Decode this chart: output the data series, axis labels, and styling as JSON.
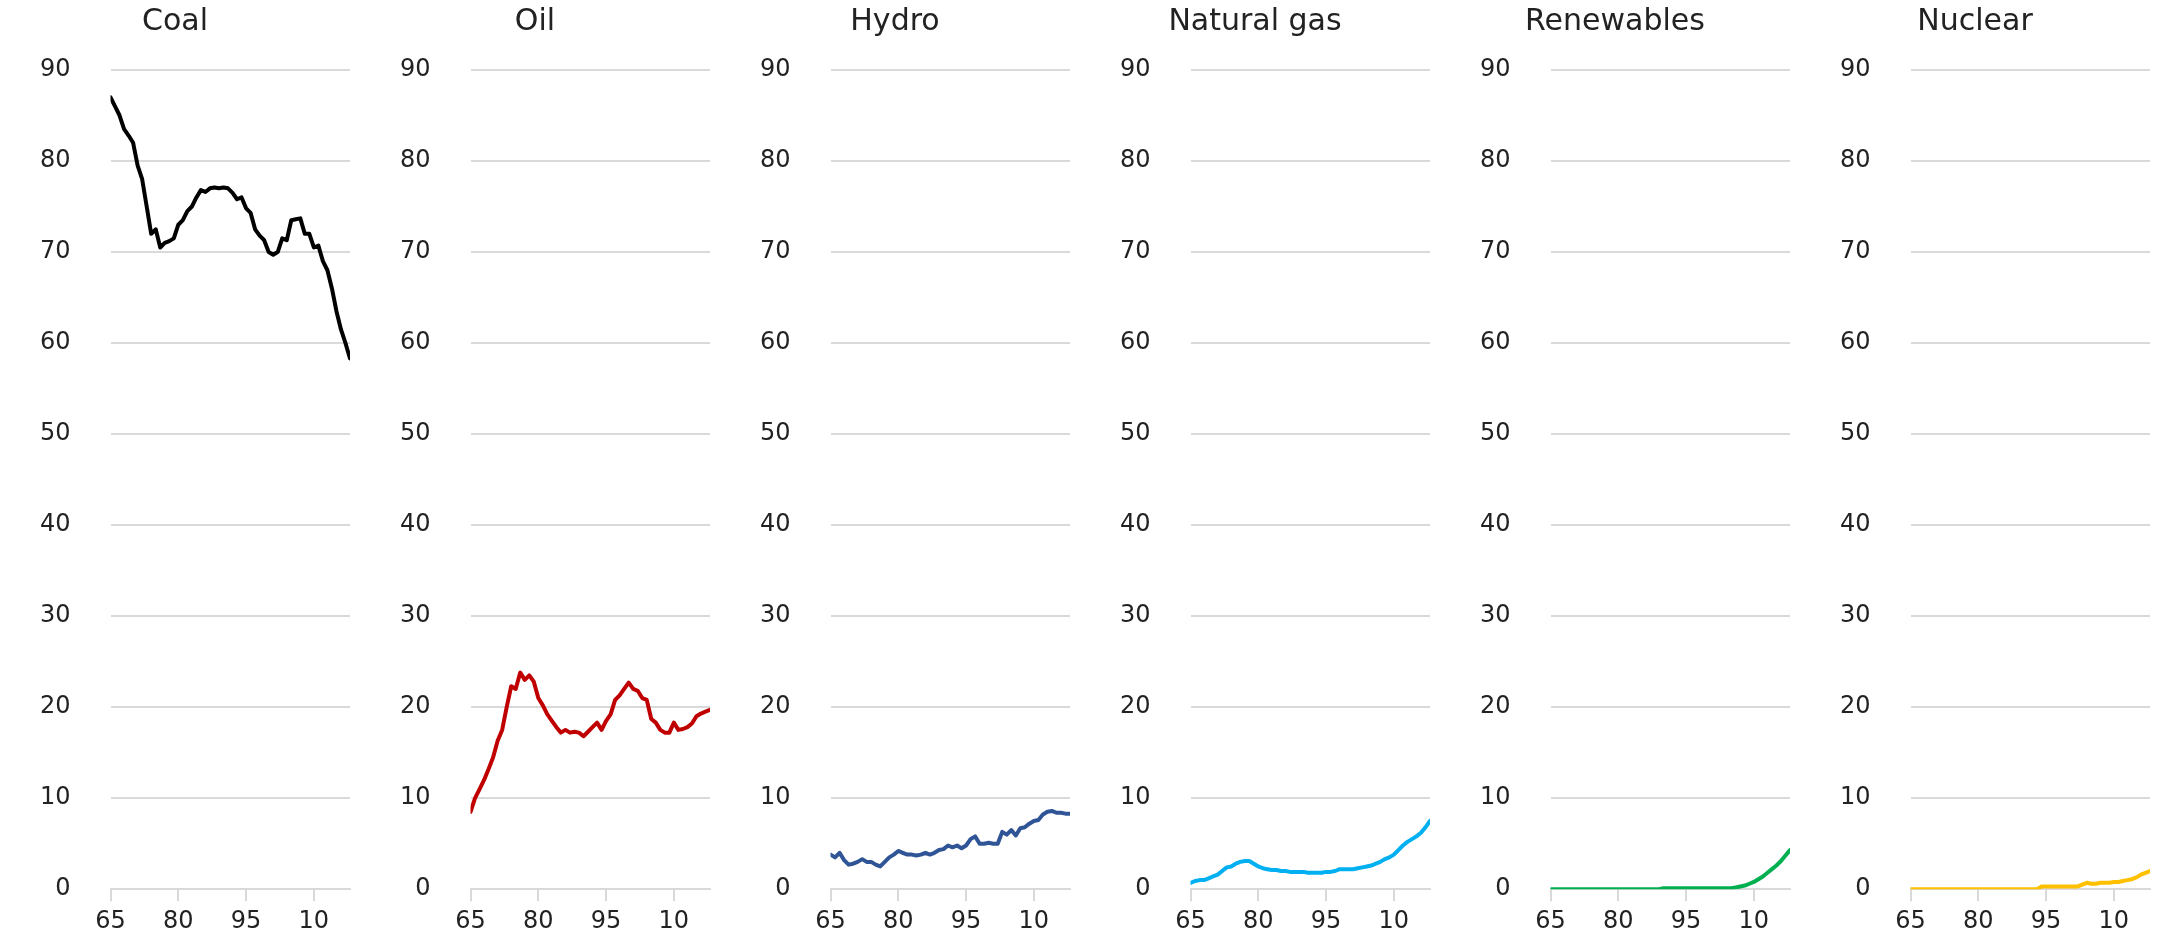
{
  "chart_data": [
    {
      "type": "line",
      "title": "Coal",
      "color": "#000000",
      "xlim": [
        1965,
        2018
      ],
      "xticks": [
        {
          "value": 1965,
          "label": "65"
        },
        {
          "value": 1980,
          "label": "80"
        },
        {
          "value": 1995,
          "label": "95"
        },
        {
          "value": 2010,
          "label": "10"
        }
      ],
      "ylim": [
        0,
        90
      ],
      "yticks": [
        0,
        10,
        20,
        30,
        40,
        50,
        60,
        70,
        80,
        90
      ],
      "grid": "y",
      "x": [
        1965,
        1966,
        1967,
        1968,
        1969,
        1970,
        1971,
        1972,
        1973,
        1974,
        1975,
        1976,
        1977,
        1978,
        1979,
        1980,
        1981,
        1982,
        1983,
        1984,
        1985,
        1986,
        1987,
        1988,
        1989,
        1990,
        1991,
        1992,
        1993,
        1994,
        1995,
        1996,
        1997,
        1998,
        1999,
        2000,
        2001,
        2002,
        2003,
        2004,
        2005,
        2006,
        2007,
        2008,
        2009,
        2010,
        2011,
        2012,
        2013,
        2014,
        2015,
        2016,
        2017,
        2018
      ],
      "values": [
        87,
        86,
        85,
        83.5,
        82.8,
        82,
        79.5,
        78,
        75,
        72,
        72.5,
        70.5,
        71,
        71.2,
        71.5,
        73,
        73.5,
        74.5,
        75,
        76,
        76.8,
        76.6,
        77,
        77.1,
        77,
        77.1,
        77,
        76.5,
        75.8,
        76,
        74.8,
        74.3,
        72.5,
        71.8,
        71.3,
        70,
        69.7,
        70,
        71.5,
        71.3,
        73.5,
        73.6,
        73.7,
        72,
        72,
        70.5,
        70.7,
        69,
        68,
        66,
        63.5,
        61.5,
        60,
        58.3
      ]
    },
    {
      "type": "line",
      "title": "Oil",
      "color": "#c00000",
      "xlim": [
        1965,
        2018
      ],
      "xticks": [
        {
          "value": 1965,
          "label": "65"
        },
        {
          "value": 1980,
          "label": "80"
        },
        {
          "value": 1995,
          "label": "95"
        },
        {
          "value": 2010,
          "label": "10"
        }
      ],
      "ylim": [
        0,
        90
      ],
      "yticks": [
        0,
        10,
        20,
        30,
        40,
        50,
        60,
        70,
        80,
        90
      ],
      "grid": "y",
      "x": [
        1965,
        1966,
        1967,
        1968,
        1969,
        1970,
        1971,
        1972,
        1973,
        1974,
        1975,
        1976,
        1977,
        1978,
        1979,
        1980,
        1981,
        1982,
        1983,
        1984,
        1985,
        1986,
        1987,
        1988,
        1989,
        1990,
        1991,
        1992,
        1993,
        1994,
        1995,
        1996,
        1997,
        1998,
        1999,
        2000,
        2001,
        2002,
        2003,
        2004,
        2005,
        2006,
        2007,
        2008,
        2009,
        2010,
        2011,
        2012,
        2013,
        2014,
        2015,
        2016,
        2017,
        2018
      ],
      "values": [
        8.5,
        10,
        11,
        12,
        13.2,
        14.5,
        16.3,
        17.5,
        20,
        22.3,
        22,
        23.8,
        23,
        23.5,
        22.8,
        21,
        20.2,
        19.2,
        18.5,
        17.8,
        17.2,
        17.5,
        17.2,
        17.3,
        17.2,
        16.8,
        17.3,
        17.8,
        18.3,
        17.5,
        18.5,
        19.2,
        20.8,
        21.3,
        22,
        22.7,
        22,
        21.8,
        21,
        20.8,
        18.7,
        18.3,
        17.5,
        17.2,
        17.2,
        18.3,
        17.5,
        17.6,
        17.8,
        18.2,
        19,
        19.3,
        19.5,
        19.7
      ]
    },
    {
      "type": "line",
      "title": "Hydro",
      "color": "#2f5597",
      "xlim": [
        1965,
        2018
      ],
      "xticks": [
        {
          "value": 1965,
          "label": "65"
        },
        {
          "value": 1980,
          "label": "80"
        },
        {
          "value": 1995,
          "label": "95"
        },
        {
          "value": 2010,
          "label": "10"
        }
      ],
      "ylim": [
        0,
        90
      ],
      "yticks": [
        0,
        10,
        20,
        30,
        40,
        50,
        60,
        70,
        80,
        90
      ],
      "grid": "y",
      "x": [
        1965,
        1966,
        1967,
        1968,
        1969,
        1970,
        1971,
        1972,
        1973,
        1974,
        1975,
        1976,
        1977,
        1978,
        1979,
        1980,
        1981,
        1982,
        1983,
        1984,
        1985,
        1986,
        1987,
        1988,
        1989,
        1990,
        1991,
        1992,
        1993,
        1994,
        1995,
        1996,
        1997,
        1998,
        1999,
        2000,
        2001,
        2002,
        2003,
        2004,
        2005,
        2006,
        2007,
        2008,
        2009,
        2010,
        2011,
        2012,
        2013,
        2014,
        2015,
        2016,
        2017,
        2018
      ],
      "values": [
        3.8,
        3.5,
        4,
        3.2,
        2.7,
        2.8,
        3,
        3.3,
        3,
        3,
        2.7,
        2.5,
        3,
        3.5,
        3.8,
        4.2,
        4,
        3.8,
        3.8,
        3.7,
        3.8,
        4,
        3.8,
        4,
        4.3,
        4.4,
        4.8,
        4.6,
        4.8,
        4.5,
        4.8,
        5.5,
        5.8,
        5,
        5,
        5.1,
        5,
        5,
        6.3,
        6,
        6.5,
        5.9,
        6.7,
        6.8,
        7.2,
        7.5,
        7.6,
        8.2,
        8.5,
        8.6,
        8.4,
        8.4,
        8.3,
        8.3
      ]
    },
    {
      "type": "line",
      "title": "Natural gas",
      "color": "#00b0f0",
      "xlim": [
        1965,
        2018
      ],
      "xticks": [
        {
          "value": 1965,
          "label": "65"
        },
        {
          "value": 1980,
          "label": "80"
        },
        {
          "value": 1995,
          "label": "95"
        },
        {
          "value": 2010,
          "label": "10"
        }
      ],
      "ylim": [
        0,
        90
      ],
      "yticks": [
        0,
        10,
        20,
        30,
        40,
        50,
        60,
        70,
        80,
        90
      ],
      "grid": "y",
      "x": [
        1965,
        1966,
        1967,
        1968,
        1969,
        1970,
        1971,
        1972,
        1973,
        1974,
        1975,
        1976,
        1977,
        1978,
        1979,
        1980,
        1981,
        1982,
        1983,
        1984,
        1985,
        1986,
        1987,
        1988,
        1989,
        1990,
        1991,
        1992,
        1993,
        1994,
        1995,
        1996,
        1997,
        1998,
        1999,
        2000,
        2001,
        2002,
        2003,
        2004,
        2005,
        2006,
        2007,
        2008,
        2009,
        2010,
        2011,
        2012,
        2013,
        2014,
        2015,
        2016,
        2017,
        2018
      ],
      "values": [
        0.7,
        0.9,
        1,
        1,
        1.2,
        1.4,
        1.6,
        2,
        2.4,
        2.5,
        2.8,
        3,
        3.1,
        3.1,
        2.8,
        2.5,
        2.3,
        2.2,
        2.1,
        2.1,
        2,
        2,
        1.9,
        1.9,
        1.9,
        1.9,
        1.8,
        1.8,
        1.8,
        1.8,
        1.9,
        1.9,
        2,
        2.2,
        2.2,
        2.2,
        2.2,
        2.3,
        2.4,
        2.5,
        2.6,
        2.8,
        3,
        3.3,
        3.5,
        3.8,
        4.3,
        4.8,
        5.2,
        5.5,
        5.8,
        6.2,
        6.8,
        7.5
      ]
    },
    {
      "type": "line",
      "title": "Renewables",
      "color": "#00b050",
      "xlim": [
        1965,
        2018
      ],
      "xticks": [
        {
          "value": 1965,
          "label": "65"
        },
        {
          "value": 1980,
          "label": "80"
        },
        {
          "value": 1995,
          "label": "95"
        },
        {
          "value": 2010,
          "label": "10"
        }
      ],
      "ylim": [
        0,
        90
      ],
      "yticks": [
        0,
        10,
        20,
        30,
        40,
        50,
        60,
        70,
        80,
        90
      ],
      "grid": "y",
      "x": [
        1965,
        1966,
        1967,
        1968,
        1969,
        1970,
        1971,
        1972,
        1973,
        1974,
        1975,
        1976,
        1977,
        1978,
        1979,
        1980,
        1981,
        1982,
        1983,
        1984,
        1985,
        1986,
        1987,
        1988,
        1989,
        1990,
        1991,
        1992,
        1993,
        1994,
        1995,
        1996,
        1997,
        1998,
        1999,
        2000,
        2001,
        2002,
        2003,
        2004,
        2005,
        2006,
        2007,
        2008,
        2009,
        2010,
        2011,
        2012,
        2013,
        2014,
        2015,
        2016,
        2017,
        2018
      ],
      "values": [
        0,
        0,
        0,
        0,
        0,
        0,
        0,
        0,
        0,
        0,
        0,
        0,
        0,
        0,
        0,
        0,
        0,
        0,
        0,
        0,
        0,
        0,
        0,
        0,
        0,
        0.1,
        0.1,
        0.1,
        0.1,
        0.1,
        0.1,
        0.1,
        0.1,
        0.1,
        0.1,
        0.1,
        0.1,
        0.1,
        0.1,
        0.1,
        0.1,
        0.2,
        0.3,
        0.4,
        0.6,
        0.8,
        1.1,
        1.4,
        1.8,
        2.2,
        2.6,
        3.1,
        3.7,
        4.3
      ]
    },
    {
      "type": "line",
      "title": "Nuclear",
      "color": "#ffc000",
      "xlim": [
        1965,
        2018
      ],
      "xticks": [
        {
          "value": 1965,
          "label": "65"
        },
        {
          "value": 1980,
          "label": "80"
        },
        {
          "value": 1995,
          "label": "95"
        },
        {
          "value": 2010,
          "label": "10"
        }
      ],
      "ylim": [
        0,
        90
      ],
      "yticks": [
        0,
        10,
        20,
        30,
        40,
        50,
        60,
        70,
        80,
        90
      ],
      "grid": "y",
      "x": [
        1965,
        1966,
        1967,
        1968,
        1969,
        1970,
        1971,
        1972,
        1973,
        1974,
        1975,
        1976,
        1977,
        1978,
        1979,
        1980,
        1981,
        1982,
        1983,
        1984,
        1985,
        1986,
        1987,
        1988,
        1989,
        1990,
        1991,
        1992,
        1993,
        1994,
        1995,
        1996,
        1997,
        1998,
        1999,
        2000,
        2001,
        2002,
        2003,
        2004,
        2005,
        2006,
        2007,
        2008,
        2009,
        2010,
        2011,
        2012,
        2013,
        2014,
        2015,
        2016,
        2017,
        2018
      ],
      "values": [
        0,
        0,
        0,
        0,
        0,
        0,
        0,
        0,
        0,
        0,
        0,
        0,
        0,
        0,
        0,
        0,
        0,
        0,
        0,
        0,
        0,
        0,
        0,
        0,
        0,
        0,
        0,
        0,
        0,
        0.3,
        0.3,
        0.3,
        0.3,
        0.3,
        0.3,
        0.3,
        0.3,
        0.3,
        0.5,
        0.7,
        0.6,
        0.6,
        0.7,
        0.7,
        0.7,
        0.8,
        0.8,
        0.9,
        1,
        1.1,
        1.3,
        1.6,
        1.8,
        2
      ]
    }
  ]
}
